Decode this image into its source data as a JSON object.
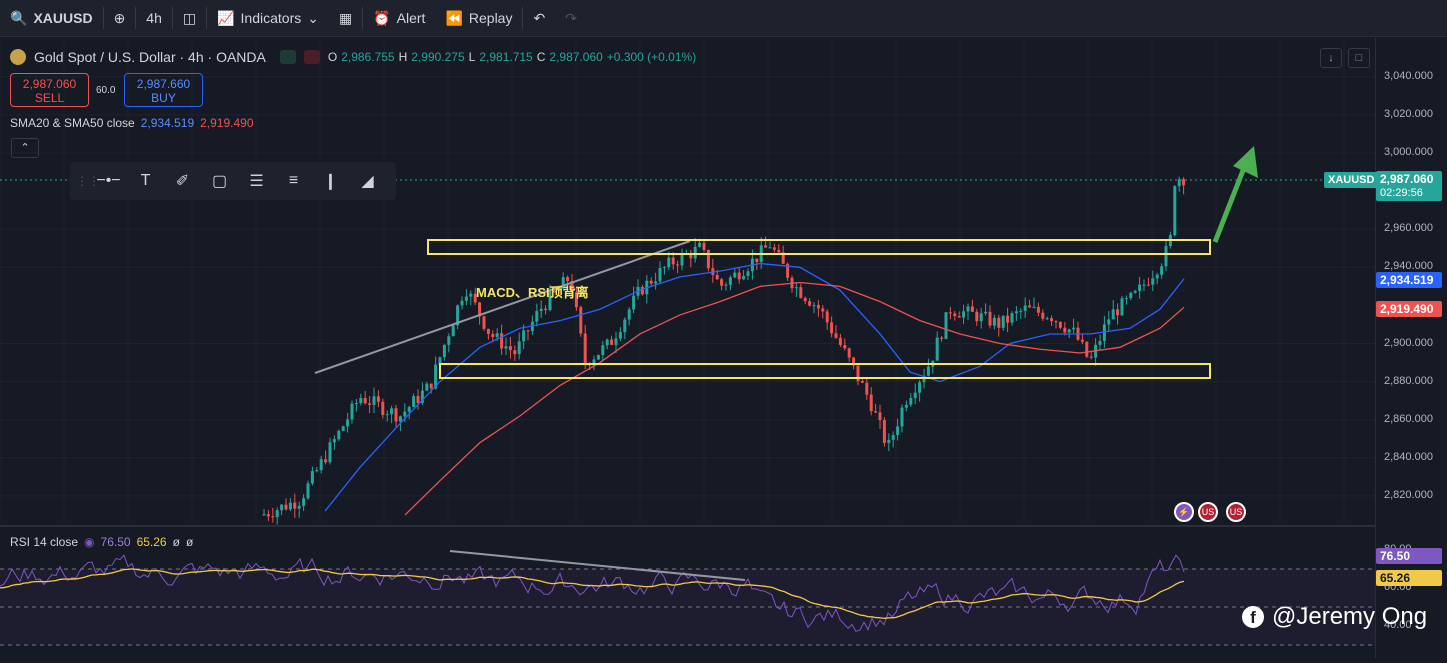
{
  "toolbar": {
    "symbol": "XAUUSD",
    "interval": "4h",
    "indicators_label": "Indicators",
    "alert_label": "Alert",
    "replay_label": "Replay"
  },
  "legend": {
    "title": "Gold Spot / U.S. Dollar · 4h · OANDA",
    "o": "2,986.755",
    "h": "2,990.275",
    "l": "2,981.715",
    "c": "2,987.060",
    "change": "+0.300 (+0.01%)"
  },
  "trade": {
    "sell_price": "2,987.060",
    "sell_label": "SELL",
    "buy_price": "2,987.660",
    "buy_label": "BUY",
    "spread": "60.0"
  },
  "sma": {
    "label": "SMA20 & SMA50 close",
    "sma20": "2,934.519",
    "sma50": "2,919.490"
  },
  "annotation": "MACD、RSI顶背离",
  "price_axis": {
    "ticks": [
      "3,040.000",
      "3,020.000",
      "3,000.000",
      "2,960.000",
      "2,940.000",
      "2,900.000",
      "2,880.000",
      "2,860.000",
      "2,840.000",
      "2,820.000"
    ],
    "current_symbol": "XAUUSD",
    "current_price": "2,987.060",
    "countdown": "02:29:56",
    "sma20_tag": "2,934.519",
    "sma50_tag": "2,919.490"
  },
  "rsi": {
    "label": "RSI 14 close",
    "rsi_value": "76.50",
    "ma_value": "65.26",
    "extra1": "ø",
    "extra2": "ø",
    "ticks": [
      "80.00",
      "60.00",
      "40.00"
    ],
    "rsi_tag": "76.50",
    "ma_tag": "65.26"
  },
  "watermark": "@Jeremy Ong",
  "colors": {
    "bull": "#26a69a",
    "bear": "#ef5350",
    "sma20": "#2962ff",
    "sma50": "#ef5350",
    "zone": "#f5e663",
    "rsi": "#7e57c2",
    "rsi_ma": "#f0c948",
    "arrow": "#4caf50"
  }
}
